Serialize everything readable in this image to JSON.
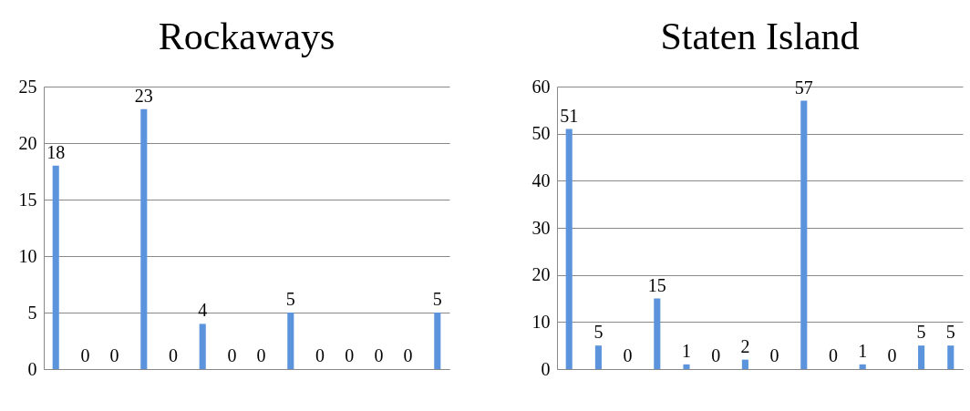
{
  "chart_data": [
    {
      "type": "bar",
      "title": "Rockaways",
      "categories": [
        null,
        null,
        null,
        null,
        null,
        null,
        null,
        null,
        null,
        null,
        null,
        null,
        null,
        null
      ],
      "values": [
        18,
        0,
        0,
        23,
        0,
        4,
        0,
        0,
        5,
        0,
        0,
        0,
        0,
        5
      ],
      "color": "#5b93dc",
      "ylim": [
        0,
        25
      ],
      "yticks": [
        0,
        5,
        10,
        15,
        20,
        25
      ],
      "grid": "y",
      "data_labels": true,
      "tick_labels": "y"
    },
    {
      "type": "bar",
      "title": "Staten Island",
      "categories": [
        null,
        null,
        null,
        null,
        null,
        null,
        null,
        null,
        null,
        null,
        null,
        null,
        null,
        null
      ],
      "values": [
        51,
        5,
        0,
        15,
        1,
        0,
        2,
        0,
        57,
        0,
        1,
        0,
        5,
        5
      ],
      "color": "#5b93dc",
      "ylim": [
        0,
        60
      ],
      "yticks": [
        0,
        10,
        20,
        30,
        40,
        50,
        60
      ],
      "grid": "y",
      "data_labels": true,
      "tick_labels": "y"
    }
  ]
}
